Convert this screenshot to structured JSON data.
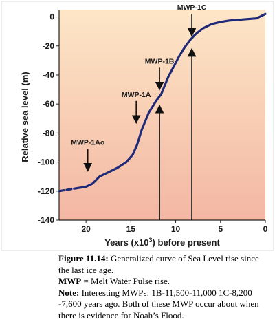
{
  "chart_data": {
    "type": "line",
    "title": "",
    "xlabel_prefix": "Years (x10",
    "xlabel_sup": "3",
    "xlabel_suffix": ") before present",
    "ylabel": "Relative sea level (m)",
    "xlim": [
      23,
      0
    ],
    "ylim": [
      -140,
      5
    ],
    "xticks": [
      20,
      15,
      10,
      5,
      0
    ],
    "yticks": [
      0,
      -20,
      -40,
      -60,
      -80,
      -100,
      -120,
      -140
    ],
    "series": [
      {
        "dashed_x": [
          23,
          22.5,
          22,
          21.5,
          21
        ],
        "dashed_y": [
          -120,
          -119.5,
          -119,
          -118.5,
          -118
        ],
        "x": [
          21,
          20,
          19.3,
          18.5,
          17.5,
          16.5,
          15.5,
          14.8,
          14.3,
          13.8,
          13.0,
          12.2,
          11.6,
          11.2,
          10.8,
          10.2,
          9.6,
          9.0,
          8.4,
          7.8,
          7.0,
          6.0,
          5.0,
          4.0,
          3.0,
          2.0,
          1.0,
          0.5,
          0
        ],
        "y": [
          -118,
          -117,
          -115,
          -110,
          -107,
          -104,
          -100,
          -95,
          -88,
          -78,
          -66,
          -58,
          -53,
          -47,
          -41,
          -34,
          -27,
          -21,
          -16,
          -12,
          -8,
          -5,
          -3.5,
          -2.5,
          -2,
          -1.5,
          -1,
          0.5,
          2
        ]
      }
    ],
    "annotations": [
      {
        "label": "MWP-1Ao",
        "x": 19.8,
        "y": -108
      },
      {
        "label": "MWP-1A",
        "x": 14.4,
        "y": -75
      },
      {
        "label": "MWP-1B",
        "x": 11.8,
        "y": -52
      },
      {
        "label": "MWP-1C",
        "x": 8.2,
        "y": -15
      }
    ],
    "vertical_markers": [
      {
        "x": 11.8,
        "y": -60
      },
      {
        "x": 8.2,
        "y": -21
      }
    ],
    "background_gradient": [
      "#fde6c7",
      "#f3b7a3"
    ],
    "line_color": "#1f2a78"
  },
  "caption": {
    "figure_label": "Figure 11.14:",
    "figure_text": "  Generalized curve of Sea Level rise since the last ice age.",
    "mwp_label": "MWP",
    "mwp_text": " = Melt Water Pulse rise.",
    "note_label": "Note:",
    "note_text": " Interesting MWPs: 1B-11,500-11,000 1C-8,200 -7,600 years ago.  Both of these MWP occur about when there is evidence for Noah’s Flood."
  }
}
